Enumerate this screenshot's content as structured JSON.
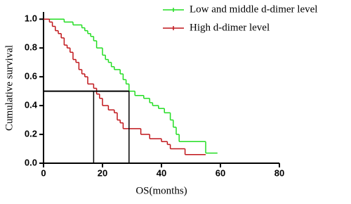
{
  "chart_data": {
    "type": "step",
    "x_label": "OS(months)",
    "y_label": "Cumulative  survival",
    "xlim": [
      0,
      80
    ],
    "ylim": [
      0,
      1.05
    ],
    "xticks": [
      0,
      20,
      40,
      60,
      80
    ],
    "yticks": [
      {
        "value": 0,
        "label": "0.0"
      },
      0.2,
      0.4,
      0.6,
      0.8,
      {
        "value": 1,
        "label": "1.0"
      }
    ],
    "legend": "top-right",
    "series": [
      {
        "name": "Low and middle d-dimer level",
        "color": "#22dd22",
        "x": [
          0,
          7,
          10,
          13,
          14,
          15,
          16,
          17,
          18,
          20,
          21,
          22,
          23,
          24,
          26,
          27,
          28,
          29,
          31,
          34,
          36,
          37,
          39,
          41,
          43,
          44,
          45,
          46,
          55,
          59
        ],
        "values": [
          1.0,
          0.98,
          0.96,
          0.94,
          0.92,
          0.9,
          0.88,
          0.85,
          0.8,
          0.75,
          0.72,
          0.7,
          0.67,
          0.65,
          0.62,
          0.58,
          0.55,
          0.5,
          0.47,
          0.45,
          0.42,
          0.4,
          0.38,
          0.35,
          0.3,
          0.25,
          0.2,
          0.15,
          0.07,
          0.07
        ]
      },
      {
        "name": "High d-dimer level",
        "color": "#c0161b",
        "x": [
          0,
          2,
          3,
          4,
          5,
          6,
          7,
          8,
          9,
          10,
          11,
          12,
          13,
          14,
          15,
          17,
          18,
          19,
          20,
          22,
          24,
          25,
          26,
          27,
          33,
          36,
          40,
          42,
          43,
          48,
          55
        ],
        "values": [
          1.0,
          0.98,
          0.95,
          0.92,
          0.9,
          0.87,
          0.82,
          0.8,
          0.77,
          0.72,
          0.7,
          0.65,
          0.62,
          0.6,
          0.55,
          0.52,
          0.48,
          0.45,
          0.4,
          0.37,
          0.35,
          0.3,
          0.28,
          0.24,
          0.2,
          0.17,
          0.15,
          0.13,
          0.1,
          0.06,
          0.06
        ]
      }
    ],
    "median_lines": {
      "y": 0.5,
      "x": [
        17,
        29
      ]
    }
  }
}
